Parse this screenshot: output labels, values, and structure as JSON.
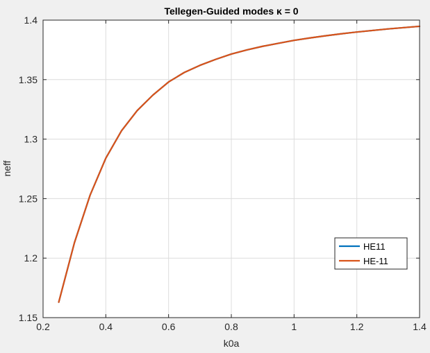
{
  "chart_data": {
    "type": "line",
    "title": "Tellegen-Guided modes κ = 0",
    "xlabel": "k0a",
    "ylabel": "neff",
    "xlim": [
      0.2,
      1.4
    ],
    "ylim": [
      1.15,
      1.4
    ],
    "xticks": [
      0.2,
      0.4,
      0.6,
      0.8,
      1.0,
      1.2,
      1.4
    ],
    "xtick_labels": [
      "0.2",
      "0.4",
      "0.6",
      "0.8",
      "1",
      "1.2",
      "1.4"
    ],
    "yticks": [
      1.15,
      1.2,
      1.25,
      1.3,
      1.35,
      1.4
    ],
    "ytick_labels": [
      "1.15",
      "1.2",
      "1.25",
      "1.3",
      "1.35",
      "1.4"
    ],
    "grid": true,
    "legend_position": "lower-right",
    "colors": {
      "HE11": "#0072BD",
      "HE-11": "#D95319",
      "axes_bg": "#ffffff",
      "figure_bg": "#f0f0f0"
    },
    "series": [
      {
        "name": "HE11",
        "x": [
          0.25,
          0.3,
          0.35,
          0.4,
          0.45,
          0.5,
          0.55,
          0.6,
          0.65,
          0.7,
          0.75,
          0.8,
          0.85,
          0.9,
          0.95,
          1.0,
          1.05,
          1.1,
          1.15,
          1.2,
          1.25,
          1.3,
          1.35,
          1.4
        ],
        "y": [
          1.163,
          1.213,
          1.253,
          1.284,
          1.307,
          1.324,
          1.337,
          1.348,
          1.356,
          1.362,
          1.367,
          1.3715,
          1.375,
          1.378,
          1.3805,
          1.383,
          1.385,
          1.3868,
          1.3885,
          1.39,
          1.3913,
          1.3926,
          1.3937,
          1.3948
        ]
      },
      {
        "name": "HE-11",
        "x": [
          0.25,
          0.3,
          0.35,
          0.4,
          0.45,
          0.5,
          0.55,
          0.6,
          0.65,
          0.7,
          0.75,
          0.8,
          0.85,
          0.9,
          0.95,
          1.0,
          1.05,
          1.1,
          1.15,
          1.2,
          1.25,
          1.3,
          1.35,
          1.4
        ],
        "y": [
          1.163,
          1.213,
          1.253,
          1.284,
          1.307,
          1.324,
          1.337,
          1.348,
          1.356,
          1.362,
          1.367,
          1.3715,
          1.375,
          1.378,
          1.3805,
          1.383,
          1.385,
          1.3868,
          1.3885,
          1.39,
          1.3913,
          1.3926,
          1.3937,
          1.3948
        ]
      }
    ]
  }
}
